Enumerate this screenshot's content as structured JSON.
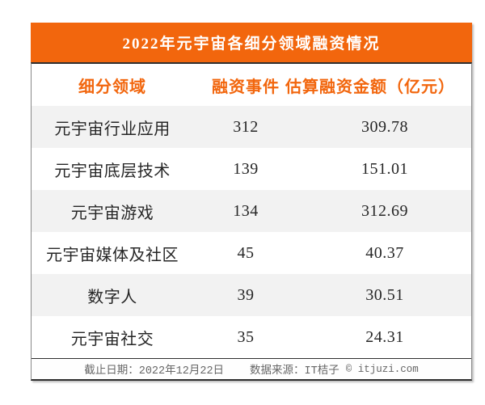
{
  "chart_data": {
    "type": "table",
    "title": "2022年元宇宙各细分领域融资情况",
    "columns": [
      "细分领域",
      "融资事件",
      "估算融资金额（亿元）"
    ],
    "rows": [
      [
        "元宇宙行业应用",
        312,
        "309.78"
      ],
      [
        "元宇宙底层技术",
        139,
        "151.01"
      ],
      [
        "元宇宙游戏",
        134,
        "312.69"
      ],
      [
        "元宇宙媒体及社区",
        45,
        "40.37"
      ],
      [
        "数字人",
        39,
        "30.51"
      ],
      [
        "元宇宙社交",
        35,
        "24.31"
      ]
    ],
    "row_striping": "odd rows light gray, even rows white",
    "legend_position": "none",
    "grid": false
  },
  "footer": {
    "deadline": "截止日期：2022年12月22日",
    "source": "数据来源：IT桔子",
    "copyright": "© itjuzi.com"
  },
  "colors": {
    "accent": "#F2660D",
    "banner-text": "#FFFFFF",
    "stripe": "#F2F2F2",
    "body-text": "#262626",
    "footer-text": "#666666",
    "border-dark": "#2F2F2F",
    "border-side": "#8A8A8A",
    "shadow": "#BFBFBF"
  }
}
